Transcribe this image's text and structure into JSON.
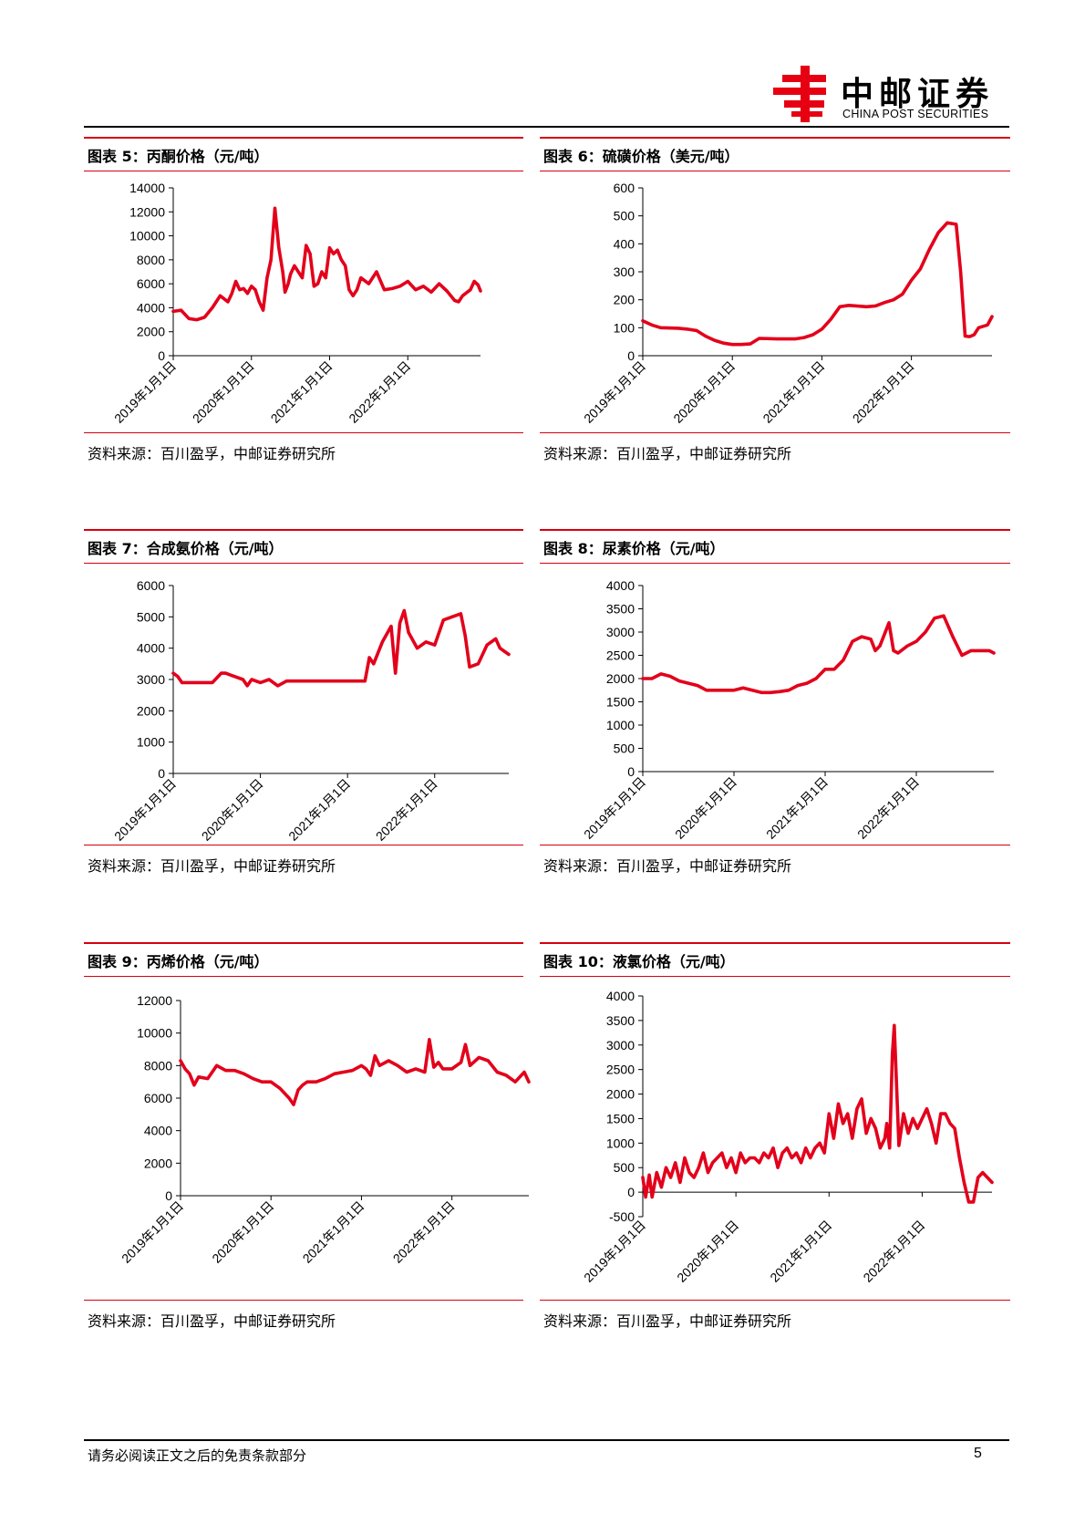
{
  "header": {
    "brand_cn": "中邮证券",
    "brand_en": "CHINA POST SECURITIES",
    "brand_color": "#e60012"
  },
  "footer": {
    "disclaimer": "请务必阅读正文之后的免责条款部分",
    "page_number": "5"
  },
  "colors": {
    "line": "#e3001b",
    "rule": "#d7000f"
  },
  "panels": [
    {
      "title": "图表 5：丙酮价格（元/吨）",
      "source": "资料来源：百川盈孚，中邮证券研究所"
    },
    {
      "title": "图表 6：硫磺价格（美元/吨）",
      "source": "资料来源：百川盈孚，中邮证券研究所"
    },
    {
      "title": "图表 7：合成氨价格（元/吨）",
      "source": "资料来源：百川盈孚，中邮证券研究所"
    },
    {
      "title": "图表 8：尿素价格（元/吨）",
      "source": "资料来源：百川盈孚，中邮证券研究所"
    },
    {
      "title": "图表 9：丙烯价格（元/吨）",
      "source": "资料来源：百川盈孚，中邮证券研究所"
    },
    {
      "title": "图表 10：液氯价格（元/吨）",
      "source": "资料来源：百川盈孚，中邮证券研究所"
    }
  ],
  "chart_data": [
    {
      "type": "line",
      "title": "丙酮价格（元/吨）",
      "x_ticks": [
        "2019年1月1日",
        "2020年1月1日",
        "2021年1月1日",
        "2022年1月1日"
      ],
      "x_range": [
        2019.0,
        2022.93
      ],
      "ylim": [
        0,
        14000
      ],
      "y_ticks": [
        0,
        2000,
        4000,
        6000,
        8000,
        10000,
        12000,
        14000
      ],
      "series": [
        {
          "name": "丙酮",
          "x": [
            2019.0,
            2019.1,
            2019.2,
            2019.3,
            2019.4,
            2019.5,
            2019.6,
            2019.7,
            2019.75,
            2019.8,
            2019.85,
            2019.9,
            2019.95,
            2020.0,
            2020.05,
            2020.1,
            2020.15,
            2020.2,
            2020.25,
            2020.3,
            2020.35,
            2020.4,
            2020.43,
            2020.47,
            2020.5,
            2020.55,
            2020.6,
            2020.65,
            2020.7,
            2020.75,
            2020.8,
            2020.85,
            2020.9,
            2020.95,
            2021.0,
            2021.05,
            2021.1,
            2021.15,
            2021.2,
            2021.25,
            2021.3,
            2021.35,
            2021.4,
            2021.5,
            2021.6,
            2021.7,
            2021.8,
            2021.9,
            2022.0,
            2022.1,
            2022.2,
            2022.3,
            2022.4,
            2022.5,
            2022.6,
            2022.65,
            2022.7,
            2022.8,
            2022.85,
            2022.9,
            2022.93
          ],
          "values": [
            3700,
            3800,
            3100,
            3000,
            3200,
            4000,
            5000,
            4500,
            5200,
            6200,
            5500,
            5600,
            5200,
            5800,
            5500,
            4500,
            3800,
            6500,
            8000,
            12300,
            9000,
            7000,
            5300,
            6000,
            6800,
            7500,
            7000,
            6500,
            9200,
            8500,
            5800,
            6000,
            7000,
            6500,
            9000,
            8500,
            8800,
            8000,
            7500,
            5500,
            5000,
            5500,
            6500,
            6000,
            7000,
            5500,
            5600,
            5800,
            6200,
            5500,
            5800,
            5300,
            6000,
            5400,
            4600,
            4500,
            5000,
            5500,
            6200,
            5900,
            5400
          ]
        }
      ]
    },
    {
      "type": "line",
      "title": "硫磺价格（美元/吨）",
      "x_ticks": [
        "2019年1月1日",
        "2020年1月1日",
        "2021年1月1日",
        "2022年1月1日"
      ],
      "x_range": [
        2019.0,
        2022.9
      ],
      "ylim": [
        0,
        600
      ],
      "y_ticks": [
        0,
        100,
        200,
        300,
        400,
        500,
        600
      ],
      "series": [
        {
          "name": "硫磺",
          "x": [
            2019.0,
            2019.1,
            2019.2,
            2019.4,
            2019.5,
            2019.6,
            2019.7,
            2019.8,
            2019.9,
            2020.0,
            2020.1,
            2020.2,
            2020.3,
            2020.5,
            2020.7,
            2020.8,
            2020.9,
            2021.0,
            2021.1,
            2021.2,
            2021.3,
            2021.5,
            2021.6,
            2021.7,
            2021.8,
            2021.9,
            2022.0,
            2022.1,
            2022.2,
            2022.3,
            2022.4,
            2022.5,
            2022.55,
            2022.6,
            2022.65,
            2022.7,
            2022.75,
            2022.8,
            2022.85,
            2022.9
          ],
          "values": [
            125,
            110,
            100,
            98,
            95,
            90,
            70,
            55,
            45,
            40,
            40,
            42,
            62,
            60,
            60,
            65,
            75,
            95,
            130,
            175,
            180,
            175,
            178,
            190,
            200,
            220,
            270,
            310,
            380,
            440,
            475,
            470,
            300,
            70,
            68,
            75,
            100,
            105,
            110,
            140
          ]
        }
      ]
    },
    {
      "type": "line",
      "title": "合成氨价格（元/吨）",
      "x_ticks": [
        "2019年1月1日",
        "2020年1月1日",
        "2021年1月1日",
        "2022年1月1日"
      ],
      "x_range": [
        2019.0,
        2022.85
      ],
      "ylim": [
        0,
        6000
      ],
      "y_ticks": [
        0,
        1000,
        2000,
        3000,
        4000,
        5000,
        6000
      ],
      "series": [
        {
          "name": "合成氨",
          "x": [
            2019.0,
            2019.05,
            2019.1,
            2019.2,
            2019.3,
            2019.45,
            2019.55,
            2019.6,
            2019.7,
            2019.8,
            2019.85,
            2019.9,
            2020.0,
            2020.1,
            2020.2,
            2020.3,
            2020.4,
            2020.5,
            2020.6,
            2020.7,
            2020.8,
            2021.0,
            2021.1,
            2021.2,
            2021.25,
            2021.3,
            2021.4,
            2021.5,
            2021.55,
            2021.6,
            2021.65,
            2021.7,
            2021.8,
            2021.9,
            2022.0,
            2022.1,
            2022.2,
            2022.3,
            2022.35,
            2022.4,
            2022.5,
            2022.6,
            2022.7,
            2022.75,
            2022.8,
            2022.85
          ],
          "values": [
            3200,
            3100,
            2900,
            2900,
            2900,
            2900,
            3200,
            3200,
            3100,
            3000,
            2800,
            3000,
            2900,
            3000,
            2800,
            2950,
            2950,
            2950,
            2950,
            2950,
            2950,
            2950,
            2950,
            2950,
            3700,
            3500,
            4200,
            4700,
            3200,
            4800,
            5200,
            4500,
            4000,
            4200,
            4100,
            4900,
            5000,
            5100,
            4400,
            3400,
            3500,
            4100,
            4300,
            4000,
            3900,
            3800
          ]
        }
      ]
    },
    {
      "type": "line",
      "title": "尿素价格（元/吨）",
      "x_ticks": [
        "2019年1月1日",
        "2020年1月1日",
        "2021年1月1日",
        "2022年1月1日"
      ],
      "x_range": [
        2019.0,
        2022.85
      ],
      "ylim": [
        0,
        4000
      ],
      "y_ticks": [
        0,
        500,
        1000,
        1500,
        2000,
        2500,
        3000,
        3500,
        4000
      ],
      "series": [
        {
          "name": "尿素",
          "x": [
            2019.0,
            2019.1,
            2019.2,
            2019.3,
            2019.4,
            2019.5,
            2019.6,
            2019.7,
            2019.8,
            2020.0,
            2020.1,
            2020.2,
            2020.3,
            2020.4,
            2020.5,
            2020.6,
            2020.7,
            2020.8,
            2020.9,
            2021.0,
            2021.1,
            2021.2,
            2021.3,
            2021.4,
            2021.5,
            2021.55,
            2021.6,
            2021.7,
            2021.75,
            2021.8,
            2021.9,
            2022.0,
            2022.1,
            2022.2,
            2022.3,
            2022.4,
            2022.5,
            2022.6,
            2022.7,
            2022.8,
            2022.85
          ],
          "values": [
            2000,
            2000,
            2100,
            2050,
            1950,
            1900,
            1850,
            1750,
            1750,
            1750,
            1800,
            1750,
            1700,
            1700,
            1720,
            1750,
            1850,
            1900,
            2000,
            2200,
            2200,
            2400,
            2800,
            2900,
            2850,
            2600,
            2700,
            3200,
            2600,
            2550,
            2700,
            2800,
            3000,
            3300,
            3350,
            2900,
            2500,
            2600,
            2600,
            2600,
            2550
          ]
        }
      ]
    },
    {
      "type": "line",
      "title": "丙烯价格（元/吨）",
      "x_ticks": [
        "2019年1月1日",
        "2020年1月1日",
        "2021年1月1日",
        "2022年1月1日"
      ],
      "x_range": [
        2019.0,
        2022.85
      ],
      "ylim": [
        0,
        12000
      ],
      "y_ticks": [
        0,
        2000,
        4000,
        6000,
        8000,
        10000,
        12000
      ],
      "series": [
        {
          "name": "丙烯",
          "x": [
            2019.0,
            2019.05,
            2019.1,
            2019.15,
            2019.2,
            2019.3,
            2019.4,
            2019.5,
            2019.6,
            2019.7,
            2019.8,
            2019.9,
            2020.0,
            2020.1,
            2020.2,
            2020.25,
            2020.3,
            2020.35,
            2020.4,
            2020.5,
            2020.6,
            2020.7,
            2020.8,
            2020.9,
            2021.0,
            2021.05,
            2021.1,
            2021.15,
            2021.2,
            2021.3,
            2021.4,
            2021.5,
            2021.6,
            2021.7,
            2021.75,
            2021.8,
            2021.85,
            2021.9,
            2022.0,
            2022.1,
            2022.15,
            2022.2,
            2022.3,
            2022.4,
            2022.5,
            2022.6,
            2022.7,
            2022.8,
            2022.85
          ],
          "values": [
            8300,
            7800,
            7500,
            6800,
            7300,
            7200,
            8000,
            7700,
            7700,
            7500,
            7200,
            7000,
            7000,
            6600,
            6000,
            5600,
            6500,
            6800,
            7000,
            7000,
            7200,
            7500,
            7600,
            7700,
            8000,
            7800,
            7400,
            8600,
            8000,
            8300,
            8000,
            7600,
            7800,
            7600,
            9600,
            7900,
            8200,
            7800,
            7800,
            8200,
            9300,
            8000,
            8500,
            8300,
            7600,
            7400,
            7000,
            7600,
            7000
          ]
        }
      ]
    },
    {
      "type": "line",
      "title": "液氯价格（元/吨）",
      "x_ticks": [
        "2019年1月1日",
        "2020年1月1日",
        "2021年1月1日",
        "2022年1月1日"
      ],
      "x_range": [
        2019.0,
        2022.75
      ],
      "ylim": [
        -500,
        4000
      ],
      "y_ticks": [
        -500,
        0,
        500,
        1000,
        1500,
        2000,
        2500,
        3000,
        3500,
        4000
      ],
      "series": [
        {
          "name": "液氯",
          "x": [
            2019.0,
            2019.03,
            2019.07,
            2019.1,
            2019.15,
            2019.2,
            2019.25,
            2019.3,
            2019.35,
            2019.4,
            2019.45,
            2019.5,
            2019.55,
            2019.6,
            2019.65,
            2019.7,
            2019.75,
            2019.8,
            2019.85,
            2019.9,
            2019.95,
            2020.0,
            2020.05,
            2020.1,
            2020.15,
            2020.2,
            2020.25,
            2020.3,
            2020.35,
            2020.4,
            2020.45,
            2020.5,
            2020.55,
            2020.6,
            2020.65,
            2020.7,
            2020.75,
            2020.8,
            2020.85,
            2020.9,
            2020.95,
            2021.0,
            2021.05,
            2021.1,
            2021.15,
            2021.2,
            2021.25,
            2021.3,
            2021.35,
            2021.4,
            2021.45,
            2021.5,
            2021.55,
            2021.6,
            2021.62,
            2021.65,
            2021.68,
            2021.7,
            2021.75,
            2021.8,
            2021.85,
            2021.9,
            2021.95,
            2022.0,
            2022.05,
            2022.1,
            2022.15,
            2022.2,
            2022.25,
            2022.3,
            2022.35,
            2022.4,
            2022.45,
            2022.5,
            2022.55,
            2022.6,
            2022.65,
            2022.7,
            2022.75
          ],
          "values": [
            300,
            -100,
            350,
            -100,
            400,
            100,
            500,
            300,
            600,
            200,
            700,
            400,
            300,
            500,
            800,
            400,
            600,
            700,
            800,
            500,
            700,
            400,
            800,
            600,
            700,
            700,
            600,
            800,
            700,
            900,
            500,
            800,
            900,
            700,
            800,
            600,
            900,
            700,
            900,
            1000,
            800,
            1600,
            1100,
            1800,
            1400,
            1600,
            1100,
            1700,
            1900,
            1200,
            1500,
            1300,
            900,
            1100,
            1400,
            900,
            2800,
            3400,
            950,
            1600,
            1200,
            1500,
            1300,
            1500,
            1700,
            1400,
            1000,
            1600,
            1600,
            1400,
            1300,
            700,
            200,
            -200,
            -200,
            300,
            400,
            300,
            200
          ]
        }
      ]
    }
  ]
}
